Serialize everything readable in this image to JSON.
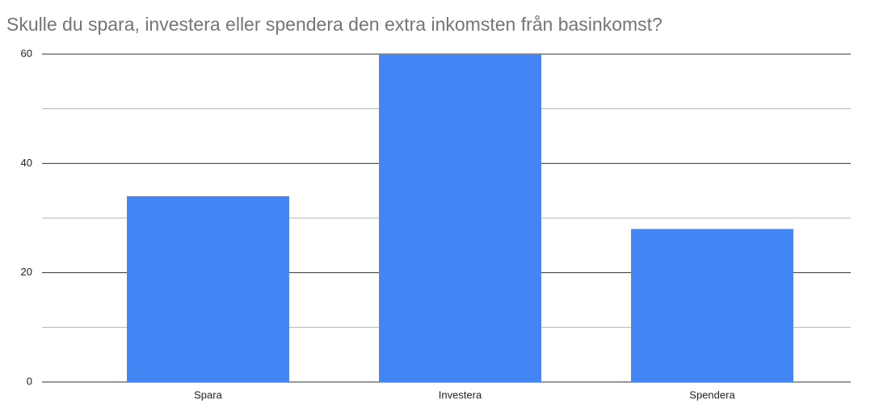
{
  "chart_data": {
    "type": "bar",
    "title": "Skulle du spara, investera eller spendera den extra inkomsten från basinkomst?",
    "categories": [
      "Spara",
      "Investera",
      "Spendera"
    ],
    "values": [
      34,
      60,
      28
    ],
    "color": "#4285f4",
    "ylim": [
      0,
      60
    ],
    "yticks": [
      0,
      20,
      40,
      60
    ],
    "minor_yticks": [
      10,
      30,
      50
    ],
    "grid": true
  }
}
